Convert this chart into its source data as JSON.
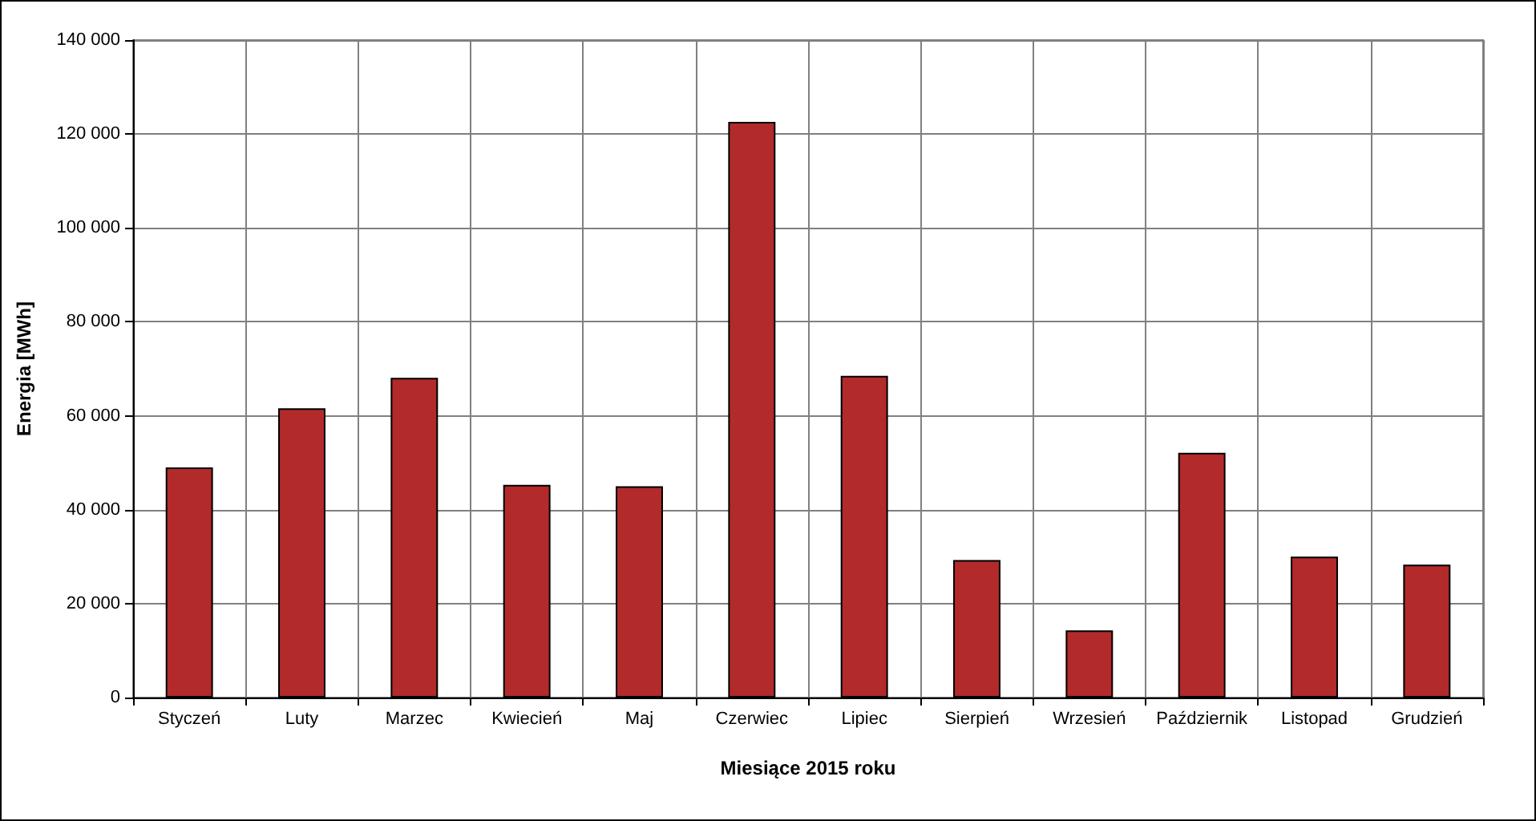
{
  "chart_data": {
    "type": "bar",
    "xlabel": "Miesiące 2015 roku",
    "ylabel": "Energia [MWh]",
    "categories": [
      "Styczeń",
      "Luty",
      "Marzec",
      "Kwiecień",
      "Maj",
      "Czerwiec",
      "Lipiec",
      "Sierpień",
      "Wrzesień",
      "Październik",
      "Listopad",
      "Grudzień"
    ],
    "values": [
      49000,
      61600,
      68100,
      45300,
      45000,
      122600,
      68500,
      29300,
      14300,
      52100,
      30000,
      28300
    ],
    "color": "#b22a2a",
    "ylim": [
      0,
      140000
    ],
    "yticks": [
      0,
      {
        "value": 20000,
        "label": "20 000"
      },
      {
        "value": 40000,
        "label": "40 000"
      },
      {
        "value": 60000,
        "label": "60 000"
      },
      {
        "value": 80000,
        "label": "80 000"
      },
      {
        "value": 100000,
        "label": "100 000"
      },
      {
        "value": 120000,
        "label": "120 000"
      },
      {
        "value": 140000,
        "label": "140 000"
      }
    ],
    "grid": true
  }
}
